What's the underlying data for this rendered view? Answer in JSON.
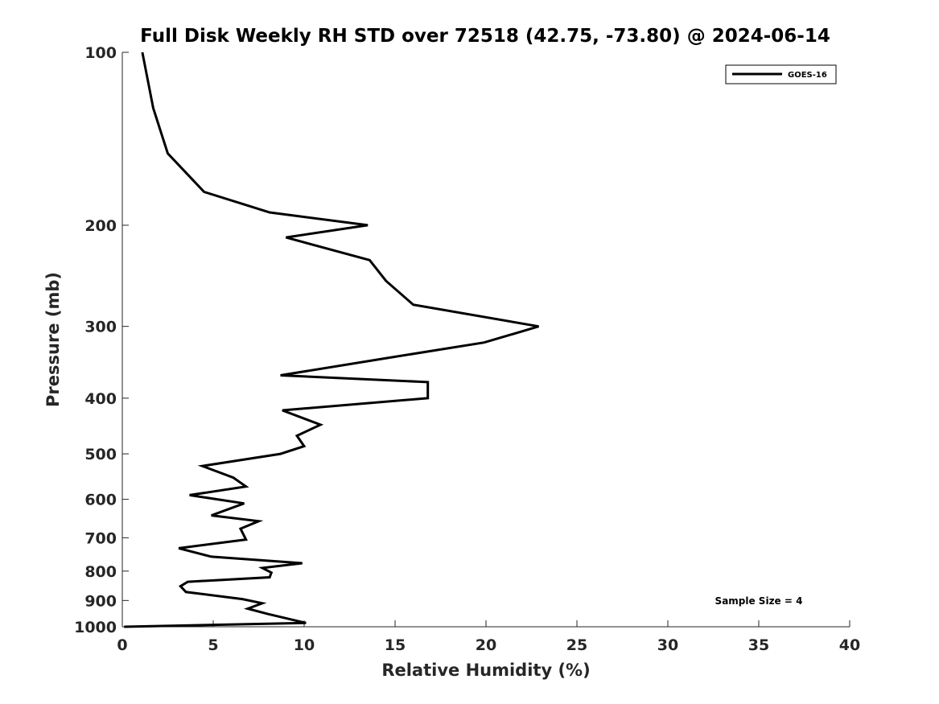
{
  "chart_data": {
    "type": "line",
    "title": "Full Disk Weekly RH STD over 72518 (42.75, -73.80) @ 2024-06-14",
    "xlabel": "Relative Humidity (%)",
    "ylabel": "Pressure (mb)",
    "xlim": [
      0,
      40
    ],
    "ylim": [
      1000,
      100
    ],
    "yscale": "log",
    "xticks": [
      0,
      5,
      10,
      15,
      20,
      25,
      30,
      35,
      40
    ],
    "xtick_labels": [
      "0",
      "5",
      "10",
      "15",
      "20",
      "25",
      "30",
      "35",
      "40"
    ],
    "yticks": [
      100,
      200,
      300,
      400,
      500,
      600,
      700,
      800,
      900,
      1000
    ],
    "ytick_labels": [
      "100",
      "200",
      "300",
      "400",
      "500",
      "600",
      "700",
      "800",
      "900",
      "1000"
    ],
    "grid": false,
    "legend_position": "top-right",
    "annotation": "Sample Size = 4",
    "series": [
      {
        "name": "GOES-16",
        "color": "#000000",
        "points": [
          [
            1.1,
            100
          ],
          [
            1.7,
            125
          ],
          [
            2.5,
            150
          ],
          [
            4.5,
            175
          ],
          [
            8.1,
            190
          ],
          [
            13.5,
            200
          ],
          [
            9.0,
            210
          ],
          [
            13.6,
            230
          ],
          [
            14.5,
            250
          ],
          [
            16.0,
            275
          ],
          [
            22.9,
            300
          ],
          [
            19.9,
            320
          ],
          [
            14.7,
            340
          ],
          [
            8.7,
            365
          ],
          [
            16.8,
            375
          ],
          [
            16.8,
            400
          ],
          [
            8.8,
            420
          ],
          [
            10.9,
            445
          ],
          [
            9.6,
            465
          ],
          [
            10.0,
            485
          ],
          [
            8.7,
            500
          ],
          [
            4.4,
            525
          ],
          [
            6.1,
            550
          ],
          [
            6.8,
            570
          ],
          [
            3.7,
            590
          ],
          [
            6.7,
            610
          ],
          [
            4.9,
            640
          ],
          [
            7.5,
            655
          ],
          [
            6.5,
            675
          ],
          [
            6.8,
            705
          ],
          [
            3.1,
            730
          ],
          [
            4.9,
            755
          ],
          [
            9.9,
            775
          ],
          [
            7.7,
            790
          ],
          [
            8.2,
            805
          ],
          [
            8.1,
            820
          ],
          [
            3.6,
            835
          ],
          [
            3.2,
            850
          ],
          [
            3.5,
            870
          ],
          [
            6.6,
            895
          ],
          [
            7.7,
            910
          ],
          [
            6.9,
            930
          ],
          [
            8.0,
            950
          ],
          [
            10.1,
            985
          ],
          [
            0.1,
            1000
          ]
        ]
      }
    ]
  }
}
